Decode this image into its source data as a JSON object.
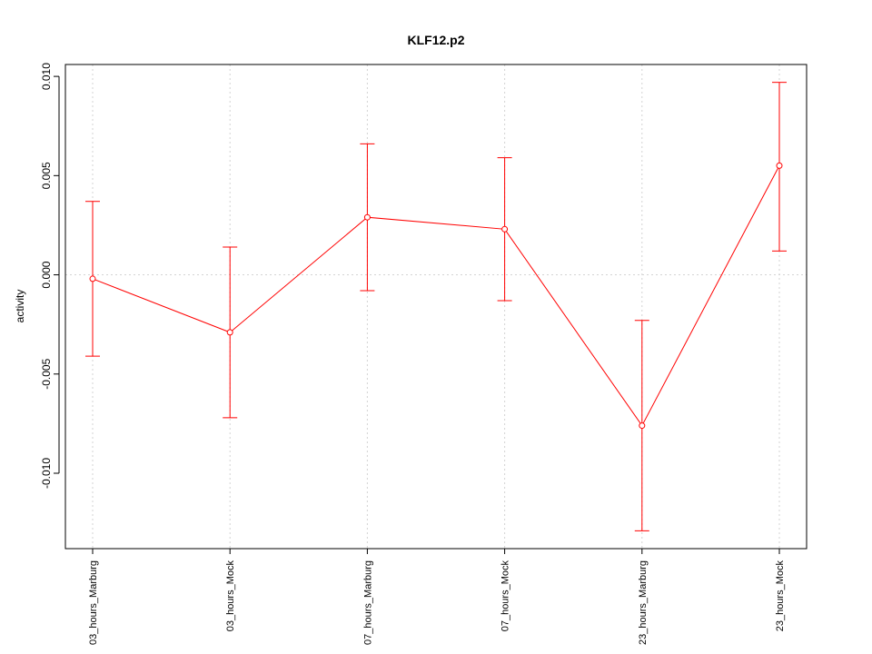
{
  "chart_data": {
    "type": "line",
    "title": "KLF12.p2",
    "xlabel": "",
    "ylabel": "activity",
    "categories": [
      "03_hours_Marburg",
      "03_hours_Mock",
      "07_hours_Marburg",
      "07_hours_Mock",
      "23_hours_Marburg",
      "23_hours_Mock"
    ],
    "series": [
      {
        "values": [
          -0.0002,
          -0.0029,
          0.0029,
          0.0023,
          -0.0076,
          0.0055
        ],
        "lower": [
          -0.0041,
          -0.0072,
          -0.0008,
          -0.0013,
          -0.0129,
          0.0012
        ],
        "upper": [
          0.0037,
          0.0014,
          0.0066,
          0.0059,
          -0.0023,
          0.0097
        ],
        "color": "#ff0000"
      }
    ],
    "ylim": [
      -0.0138,
      0.0106
    ],
    "yticks": [
      -0.01,
      -0.005,
      0.0,
      0.005,
      0.01
    ],
    "ytick_labels": [
      "-0.010",
      "-0.005",
      "0.000",
      "0.005",
      "0.010"
    ],
    "grid": true,
    "zero_line": true,
    "legend": "none"
  }
}
